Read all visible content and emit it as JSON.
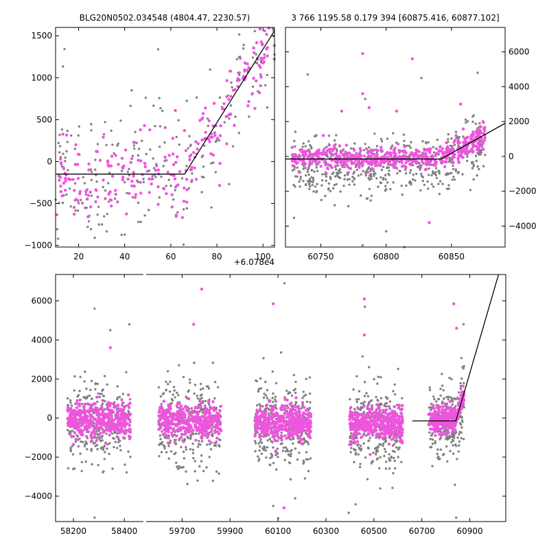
{
  "figure": {
    "title_left": "BLG20N0502.034548 (4804.47, 2230.57)",
    "title_right": "3 766 1195.58 0.179 394 [60875.416, 60877.102]"
  },
  "colors": {
    "gray_points": "#808080",
    "magenta_points": "#ee55dd",
    "model_line": "#000000"
  },
  "chart_data": [
    {
      "id": "zoom",
      "type": "scatter",
      "x_offset_label": "+6.078e4",
      "xlim": [
        60790,
        60885
      ],
      "ylim": [
        -1020,
        1600
      ],
      "xticks": [
        60800,
        60820,
        60840,
        60860,
        60880
      ],
      "xtick_labels": [
        "20",
        "40",
        "60",
        "80",
        "100"
      ],
      "yticks": [
        -1000,
        -500,
        0,
        500,
        1000,
        1500
      ],
      "ytick_labels": [
        "−1000",
        "−500",
        "0",
        "500",
        "1000",
        "1500"
      ],
      "model_line": {
        "x": [
          60790,
          60846,
          60885
        ],
        "y": [
          -150,
          -150,
          1560
        ]
      },
      "series": [
        {
          "color": "gray",
          "seed": 11,
          "segments": [
            {
              "x0": 60790,
              "x1": 60846,
              "n": 150,
              "y": -150,
              "sd": 420
            },
            {
              "x0": 60846,
              "x1": 60885,
              "n": 90,
              "y": 0,
              "sd": 420,
              "trend": true
            }
          ]
        },
        {
          "color": "magenta",
          "seed": 23,
          "segments": [
            {
              "x0": 60790,
              "x1": 60846,
              "n": 140,
              "y": -150,
              "sd": 230
            },
            {
              "x0": 60846,
              "x1": 60885,
              "n": 110,
              "y": 0,
              "sd": 220,
              "trend": true
            }
          ]
        }
      ],
      "outliers": [
        {
          "x": 60834.5,
          "y": 1340,
          "color": "gray"
        },
        {
          "x": 60823,
          "y": 850,
          "color": "gray"
        },
        {
          "x": 60880.7,
          "y": 1560,
          "color": "magenta"
        },
        {
          "x": 60855,
          "y": 640,
          "color": "magenta"
        },
        {
          "x": 60842,
          "y": 610,
          "color": "magenta"
        }
      ]
    },
    {
      "id": "season",
      "type": "scatter",
      "xlim": [
        60723,
        60891
      ],
      "ylim": [
        -5200,
        7400
      ],
      "xticks": [
        60750,
        60800,
        60850
      ],
      "xtick_labels": [
        "60750",
        "60800",
        "60850"
      ],
      "yticks": [
        -4000,
        -2000,
        0,
        2000,
        4000,
        6000
      ],
      "ytick_labels": [
        "−4000",
        "−2000",
        "0",
        "2000",
        "4000",
        "6000"
      ],
      "yaxis_side": "right",
      "model_line": {
        "x": [
          60723,
          60842,
          60891
        ],
        "y": [
          -150,
          -150,
          1900
        ]
      },
      "series": [
        {
          "color": "gray",
          "seed": 31,
          "segments": [
            {
              "x0": 60728,
              "x1": 60842,
              "n": 420,
              "y": -600,
              "sd": 850
            },
            {
              "x0": 60842,
              "x1": 60876,
              "n": 120,
              "y": -300,
              "sd": 800,
              "trend": true
            }
          ]
        },
        {
          "color": "magenta",
          "seed": 47,
          "segments": [
            {
              "x0": 60728,
              "x1": 60842,
              "n": 420,
              "y": -100,
              "sd": 300
            },
            {
              "x0": 60842,
              "x1": 60876,
              "n": 170,
              "y": 0,
              "sd": 350,
              "trend": true
            }
          ]
        }
      ],
      "outliers": [
        {
          "x": 60782,
          "y": 5900,
          "color": "magenta"
        },
        {
          "x": 60820,
          "y": 5600,
          "color": "magenta"
        },
        {
          "x": 60782,
          "y": 3600,
          "color": "magenta"
        },
        {
          "x": 60766,
          "y": 2600,
          "color": "magenta"
        },
        {
          "x": 60787,
          "y": 2800,
          "color": "magenta"
        },
        {
          "x": 60808,
          "y": 2600,
          "color": "magenta"
        },
        {
          "x": 60857,
          "y": 3000,
          "color": "magenta"
        },
        {
          "x": 60752,
          "y": 1200,
          "color": "magenta"
        },
        {
          "x": 60740,
          "y": 4700,
          "color": "gray"
        },
        {
          "x": 60870,
          "y": 4800,
          "color": "gray"
        },
        {
          "x": 60827,
          "y": 4500,
          "color": "gray"
        },
        {
          "x": 60784,
          "y": 3300,
          "color": "gray"
        },
        {
          "x": 60833,
          "y": -3800,
          "color": "magenta"
        },
        {
          "x": 60782,
          "y": -5100,
          "color": "gray"
        },
        {
          "x": 60814,
          "y": -5200,
          "color": "gray"
        },
        {
          "x": 60800,
          "y": -4300,
          "color": "gray"
        }
      ]
    },
    {
      "id": "full",
      "type": "scatter",
      "ylim": [
        -5300,
        7350
      ],
      "yticks": [
        -4000,
        -2000,
        0,
        2000,
        4000,
        6000
      ],
      "ytick_labels": [
        "−4000",
        "−2000",
        "0",
        "2000",
        "4000",
        "6000"
      ],
      "broken_axis": [
        {
          "xlim": [
            58130,
            58475
          ],
          "xticks": [
            58200,
            58400
          ],
          "xtick_labels": [
            "58200",
            "58400"
          ]
        },
        {
          "xlim": [
            59550,
            61050
          ],
          "xticks": [
            59700,
            59900,
            60100,
            60300,
            60500,
            60700,
            60900
          ],
          "xtick_labels": [
            "59700",
            "59900",
            "60100",
            "60300",
            "60500",
            "60700",
            "60900"
          ]
        }
      ],
      "model_line": {
        "x": [
          60660,
          60842,
          61020
        ],
        "y": [
          -150,
          -150,
          7350
        ]
      },
      "seasons": [
        {
          "x0": 58177,
          "x1": 58425,
          "gray_n": 330,
          "mag_n": 420,
          "gray_sd": 1000,
          "mag_sd": 420,
          "y": -200
        },
        {
          "x0": 59602,
          "x1": 59862,
          "gray_n": 330,
          "mag_n": 420,
          "gray_sd": 1100,
          "mag_sd": 420,
          "y": -300
        },
        {
          "x0": 60003,
          "x1": 60237,
          "gray_n": 330,
          "mag_n": 420,
          "gray_sd": 1100,
          "mag_sd": 420,
          "y": -400
        },
        {
          "x0": 60398,
          "x1": 60620,
          "gray_n": 330,
          "mag_n": 420,
          "gray_sd": 1100,
          "mag_sd": 420,
          "y": -400
        },
        {
          "x0": 60728,
          "x1": 60876,
          "gray_n": 260,
          "mag_n": 320,
          "gray_sd": 900,
          "mag_sd": 330,
          "y": -250
        }
      ],
      "outliers": [
        {
          "x": 59782,
          "y": 6600,
          "color": "magenta"
        },
        {
          "x": 60080,
          "y": 5850,
          "color": "magenta"
        },
        {
          "x": 60460,
          "y": 6100,
          "color": "magenta"
        },
        {
          "x": 60833,
          "y": 5850,
          "color": "magenta"
        },
        {
          "x": 58345,
          "y": 3600,
          "color": "magenta"
        },
        {
          "x": 59748,
          "y": 4800,
          "color": "magenta"
        },
        {
          "x": 60460,
          "y": 4250,
          "color": "magenta"
        },
        {
          "x": 60845,
          "y": 4600,
          "color": "magenta"
        },
        {
          "x": 58283,
          "y": 5600,
          "color": "gray"
        },
        {
          "x": 60462,
          "y": 5700,
          "color": "gray"
        },
        {
          "x": 60127,
          "y": 6900,
          "color": "gray"
        },
        {
          "x": 60874,
          "y": 4800,
          "color": "gray"
        },
        {
          "x": 58420,
          "y": 4800,
          "color": "gray"
        },
        {
          "x": 58345,
          "y": 4500,
          "color": "gray"
        },
        {
          "x": 58283,
          "y": -5100,
          "color": "gray"
        },
        {
          "x": 60080,
          "y": -4500,
          "color": "gray"
        },
        {
          "x": 60125,
          "y": -4600,
          "color": "magenta"
        },
        {
          "x": 60843,
          "y": -5100,
          "color": "gray"
        },
        {
          "x": 60395,
          "y": -4850,
          "color": "gray"
        }
      ]
    }
  ]
}
